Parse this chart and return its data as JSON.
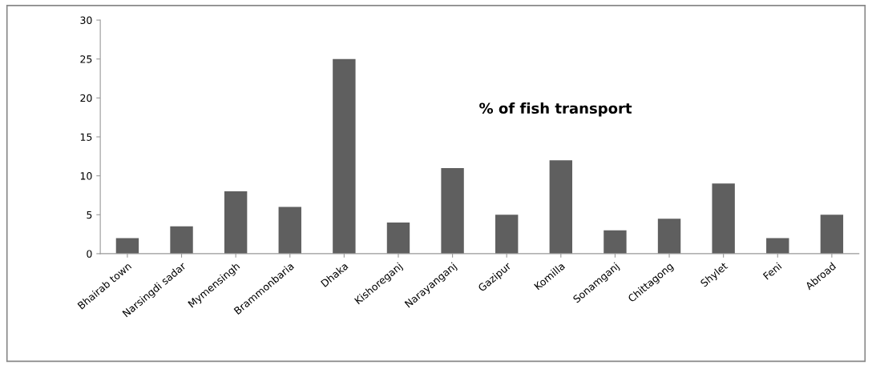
{
  "chart_data": {
    "type": "bar",
    "title": "% of fish transport",
    "categories": [
      "Bhairab town",
      "Narsingdi sadar",
      "Mymensingh",
      "Brammonbaria",
      "Dhaka",
      "Kishoreganj",
      "Narayanganj",
      "Gazipur",
      "Komilla",
      "Sonamganj",
      "Chittagong",
      "Shylet",
      "Feni",
      "Abroad"
    ],
    "values": [
      2,
      3.5,
      8,
      6,
      25,
      4,
      11,
      5,
      12,
      3,
      4.5,
      9,
      2,
      5
    ],
    "color": "#5f5f5f",
    "ylim": [
      0,
      30
    ],
    "yticks": [
      0,
      5,
      10,
      15,
      20,
      25,
      30
    ],
    "grid": false,
    "legend": false
  }
}
